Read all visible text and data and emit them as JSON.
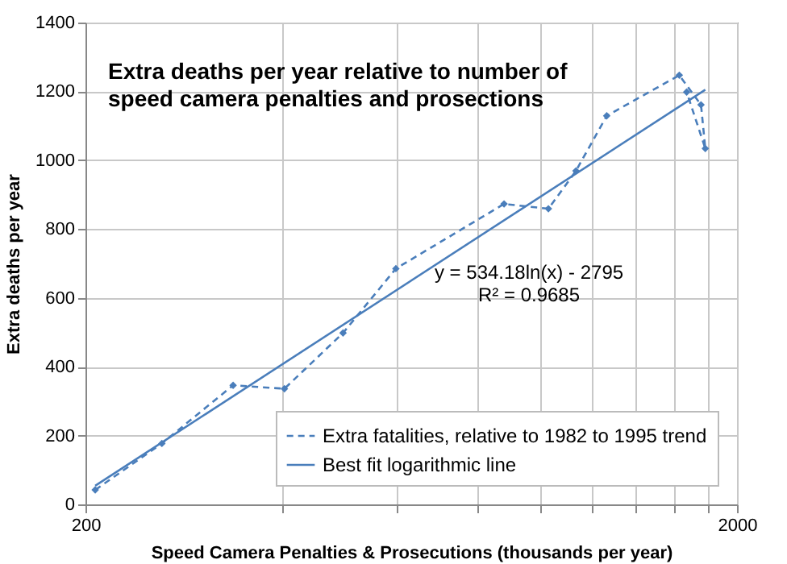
{
  "chart_data": {
    "type": "line",
    "title": "Extra deaths per year relative to number of speed camera penalties and prosections",
    "xlabel": "Speed Camera Penalties & Prosecutions  (thousands per year)",
    "ylabel": "Extra deaths per year",
    "log": "x",
    "xlim": [
      200,
      2000
    ],
    "ylim": [
      0,
      1400
    ],
    "xticks": [
      200,
      {
        "value": 400,
        "label": null
      },
      {
        "value": 600,
        "label": null
      },
      {
        "value": 800,
        "label": null
      },
      {
        "value": 1000,
        "label": null
      },
      {
        "value": 1200,
        "label": null
      },
      {
        "value": 1400,
        "label": null
      },
      {
        "value": 1600,
        "label": null
      },
      {
        "value": 1800,
        "label": null
      },
      2000
    ],
    "yticks": [
      0,
      200,
      400,
      600,
      800,
      1000,
      1200,
      1400
    ],
    "grid": true,
    "legend": "bottom right",
    "annotations": [
      "y = 534.18ln(x) - 2795\nR² = 0.9685"
    ],
    "series": [
      {
        "name": "Extra fatalities, relative to 1982 to 1995 trend",
        "color": "#4a7ebb",
        "marker": "diamond",
        "line_style": "dashed",
        "x": [
          207,
          262,
          337,
          404,
          497,
          599,
          878,
          1027,
          1132,
          1262,
          1631,
          1761,
          1788,
          1674
        ],
        "values": [
          42,
          177,
          346,
          336,
          498,
          685,
          873,
          859,
          969,
          1129,
          1247,
          1161,
          1034,
          1198
        ]
      },
      {
        "name": "Best fit logarithmic line",
        "color": "#4a7ebb",
        "marker": "none",
        "line_style": "solid",
        "x": [
          207,
          1788
        ],
        "values": [
          54,
          1205
        ]
      }
    ]
  }
}
